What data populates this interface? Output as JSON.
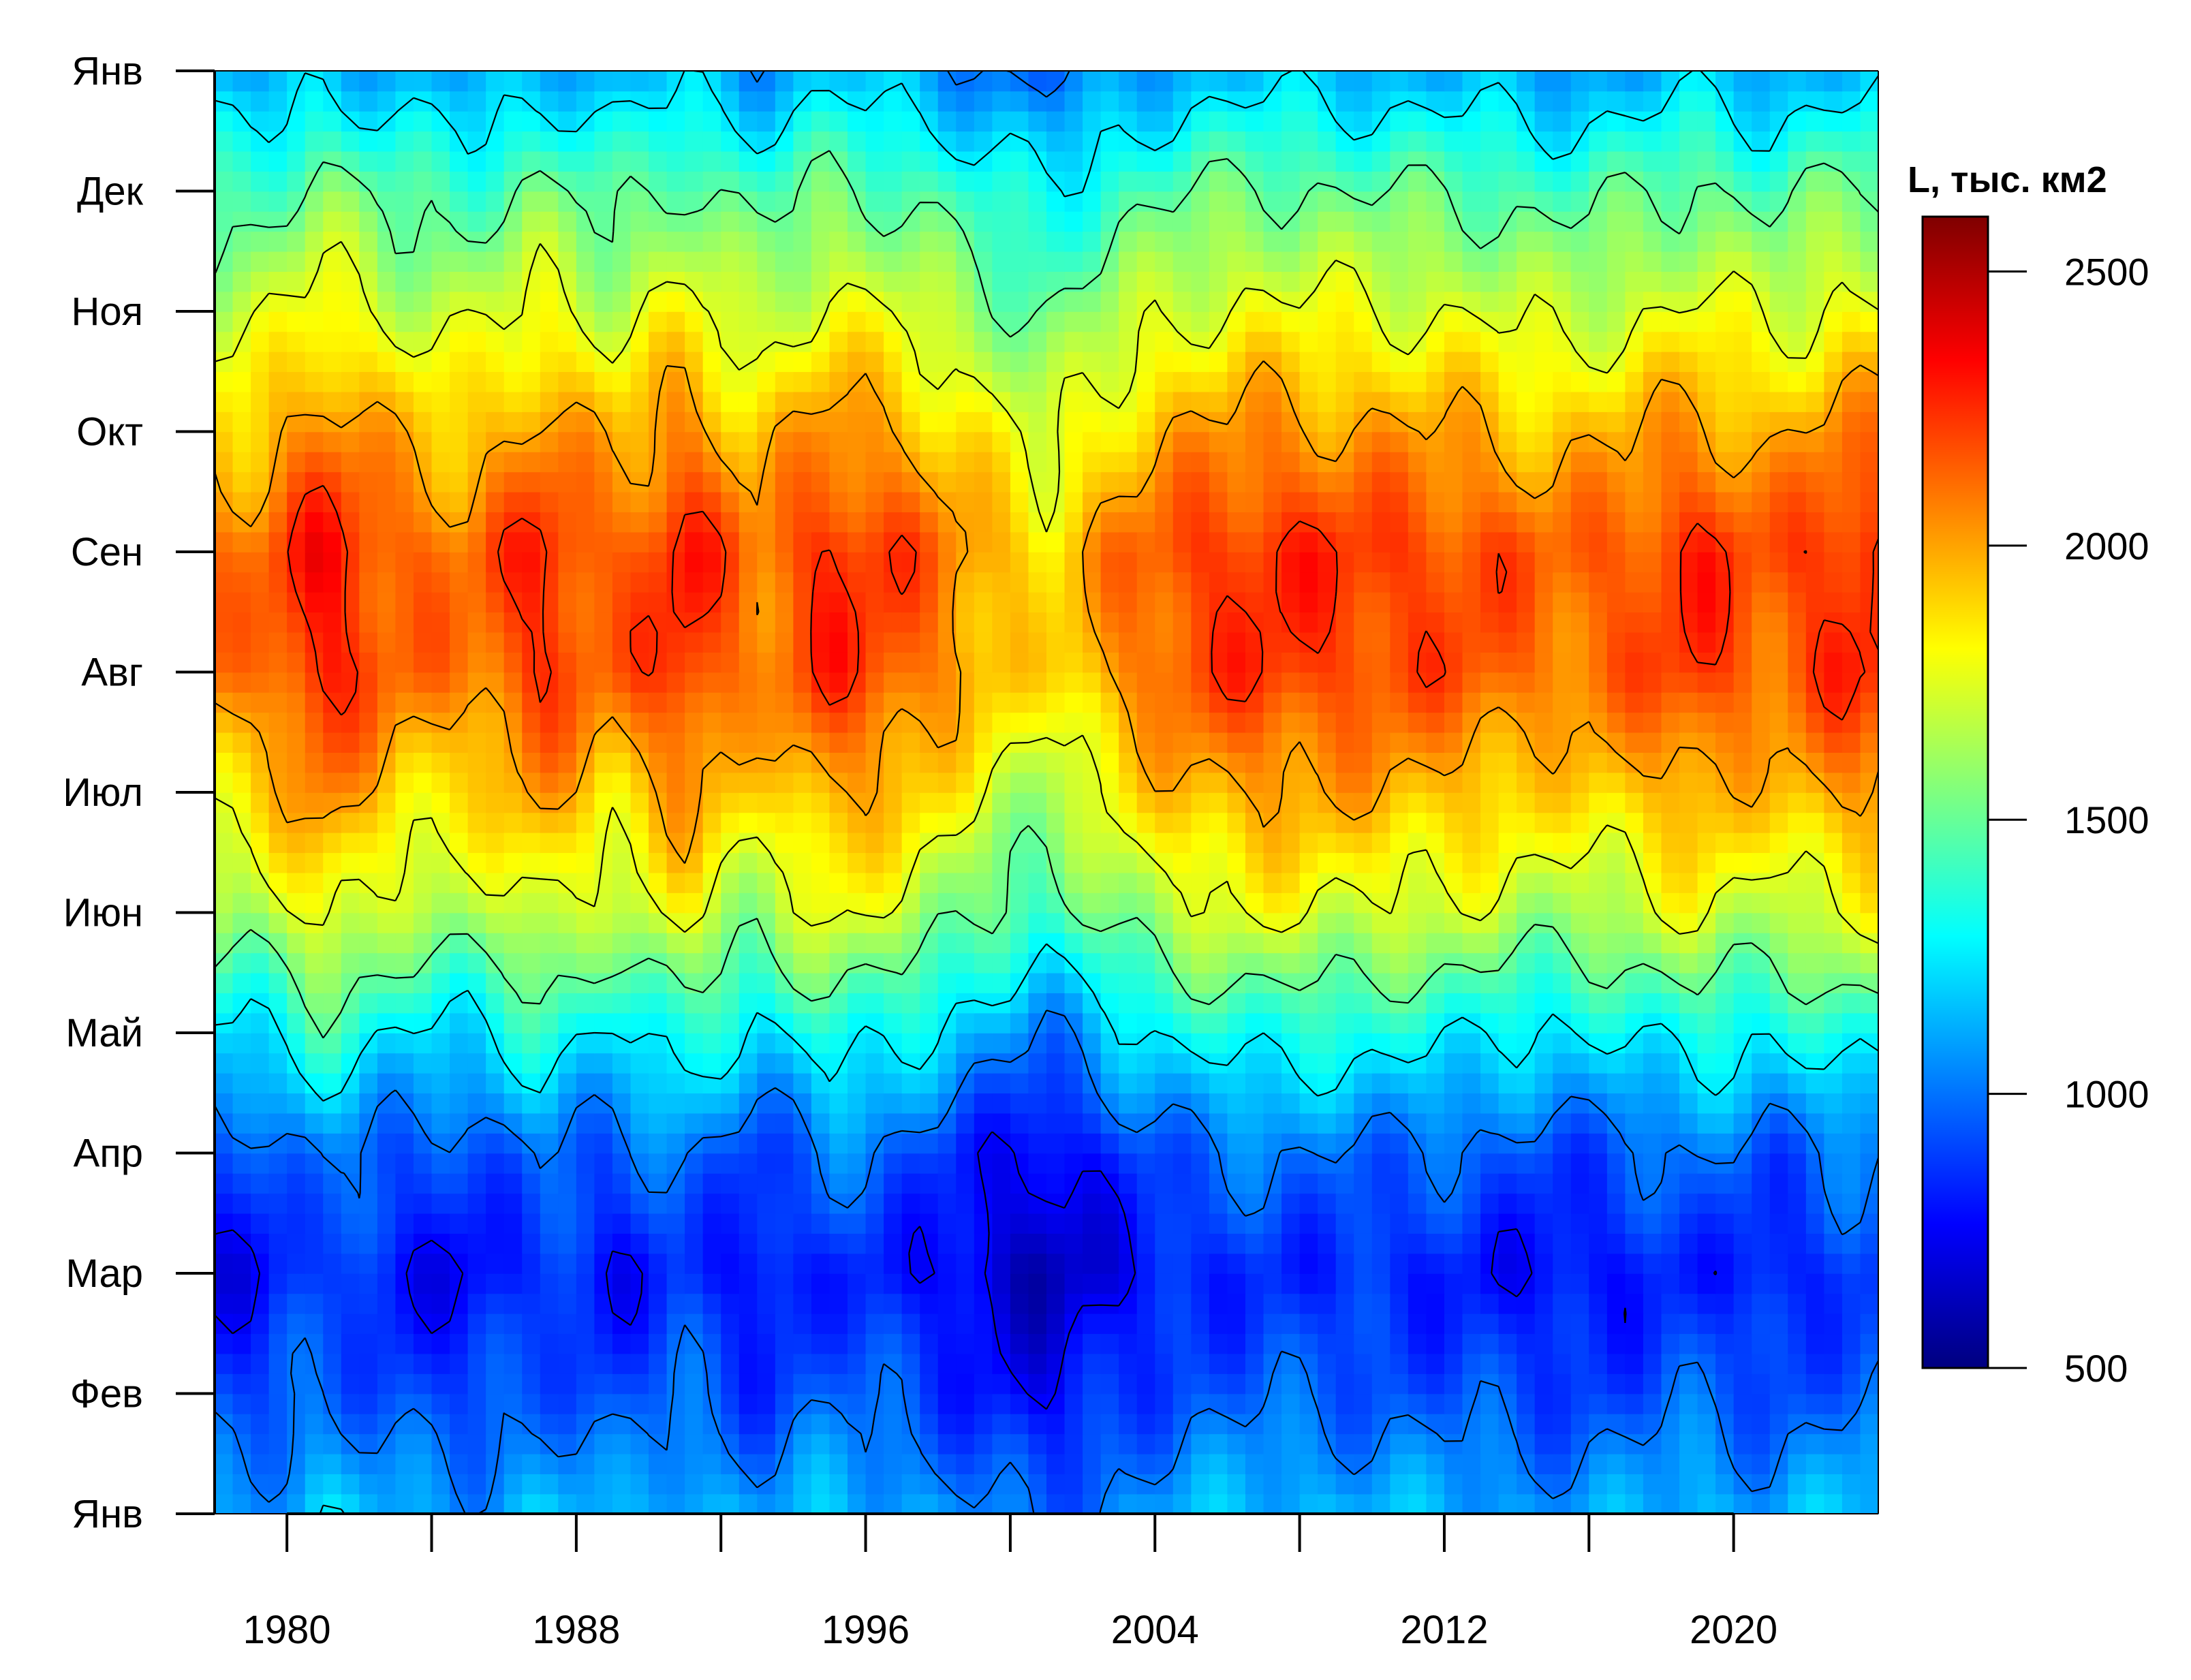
{
  "chart_data": {
    "type": "heatmap",
    "subtype": "filled-contour",
    "title": "",
    "xlabel": "",
    "ylabel": "",
    "x_range": [
      1978,
      2024
    ],
    "y_range": [
      "Янв",
      "Янв"
    ],
    "x_tick_labels": [
      "1980",
      "1988",
      "1996",
      "2004",
      "2012",
      "2020"
    ],
    "x_tick_values_all": [
      1980,
      1984,
      1988,
      1992,
      1996,
      2000,
      2004,
      2008,
      2012,
      2016,
      2020
    ],
    "y_tick_labels": [
      "Янв",
      "Фев",
      "Мар",
      "Апр",
      "Май",
      "Июн",
      "Июл",
      "Авг",
      "Сен",
      "Окт",
      "Ноя",
      "Дек",
      "Янв"
    ],
    "colorbar": {
      "title": "L, тыс. км2",
      "min": 500,
      "max": 2600,
      "ticks": [
        500,
        1000,
        1500,
        2000,
        2500
      ],
      "tick_labels": [
        "500",
        "1000",
        "1500",
        "2000",
        "2500"
      ],
      "colormap": "jet",
      "colors": [
        "#00007f",
        "#0000ff",
        "#007fff",
        "#00ffff",
        "#7fff7f",
        "#ffff00",
        "#ff7f00",
        "#ff0000",
        "#7f0000"
      ]
    },
    "contour_interval": 250,
    "grid": false,
    "legend_placement": "right",
    "annual_minimum_month_approx": "Мар",
    "annual_maximum_month_approx": "Авг–Сен",
    "yearly_profile_approx": {
      "month_positions": [
        0,
        1,
        2,
        3,
        4,
        5,
        6,
        7,
        8,
        9,
        10,
        11,
        12
      ],
      "base_values": [
        1100,
        900,
        780,
        920,
        1250,
        1650,
        1900,
        2120,
        2150,
        1950,
        1700,
        1450,
        1100
      ]
    },
    "year_anomaly_approx": {
      "years": [
        1979,
        1981,
        1983,
        1985,
        1987,
        1989,
        1991,
        1993,
        1995,
        1997,
        1999,
        2001,
        2003,
        2005,
        2007,
        2009,
        2011,
        2013,
        2015,
        2017,
        2019,
        2021,
        2023
      ],
      "anomaly": [
        -40,
        170,
        0,
        -40,
        120,
        -20,
        140,
        -60,
        120,
        40,
        -120,
        -260,
        -60,
        60,
        110,
        80,
        60,
        40,
        -30,
        20,
        110,
        0,
        120
      ]
    }
  }
}
